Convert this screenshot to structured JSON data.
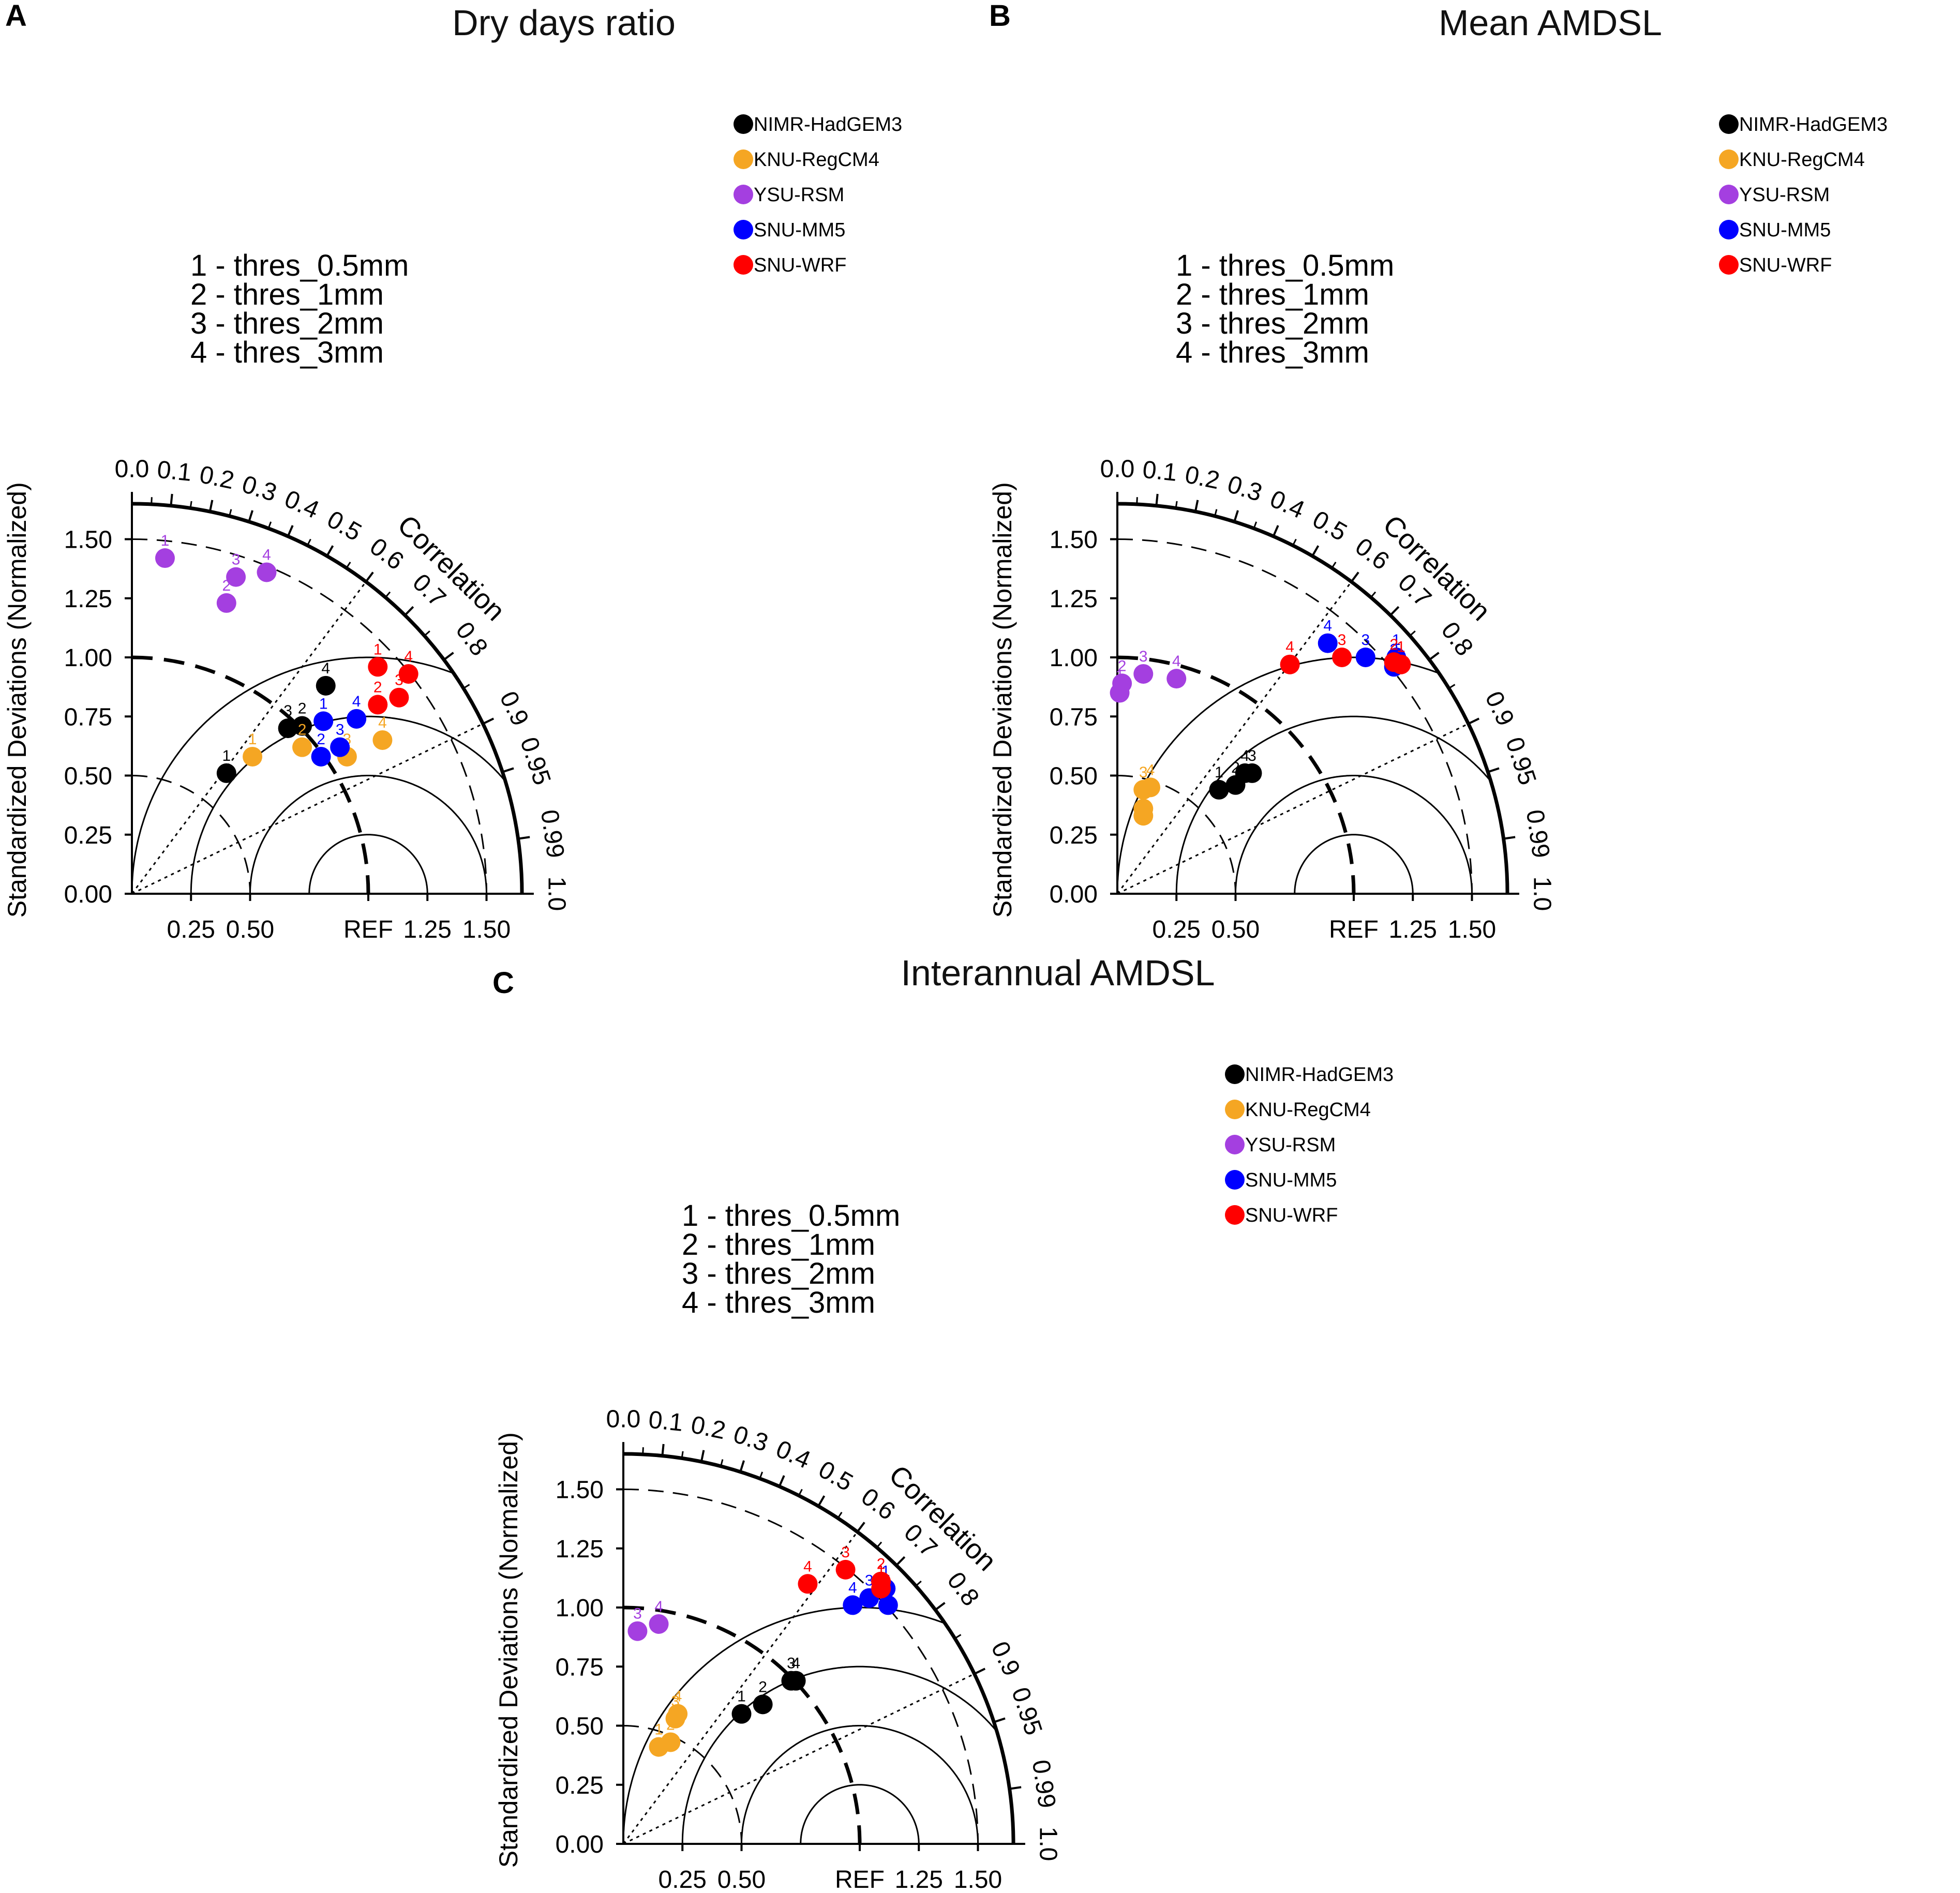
{
  "chart_data": {
    "type": "taylor",
    "ylabel": "Standardized Deviations (Normalized)",
    "correlation_label": "Correlation",
    "ref_label": "REF",
    "radial_ticks": [
      "0.00",
      "0.25",
      "0.50",
      "0.75",
      "1.00",
      "1.25",
      "1.50"
    ],
    "x_ticks": [
      "0.25",
      "0.50",
      "REF",
      "1.25",
      "1.50"
    ],
    "corr_ticks": [
      "0.0",
      "0.1",
      "0.2",
      "0.3",
      "0.4",
      "0.5",
      "0.6",
      "0.7",
      "0.8",
      "0.9",
      "0.95",
      "0.99",
      "1.0"
    ],
    "thresholds": [
      "1 - thres_0.5mm",
      "2 - thres_1mm",
      "3 - thres_2mm",
      "4 - thres_3mm"
    ],
    "legend": [
      {
        "name": "NIMR-HadGEM3",
        "color": "#000000"
      },
      {
        "name": "KNU-RegCM4",
        "color": "#f5a623"
      },
      {
        "name": "YSU-RSM",
        "color": "#a43fe0"
      },
      {
        "name": "SNU-MM5",
        "color": "#0000ff"
      },
      {
        "name": "SNU-WRF",
        "color": "#ff0000"
      }
    ],
    "panels": [
      {
        "label": "A",
        "title": "Dry days ratio",
        "series": [
          {
            "name": "NIMR-HadGEM3",
            "points": [
              {
                "id": "1",
                "x": 0.4,
                "y": 0.51
              },
              {
                "id": "2",
                "x": 0.72,
                "y": 0.71
              },
              {
                "id": "3",
                "x": 0.66,
                "y": 0.7
              },
              {
                "id": "4",
                "x": 0.82,
                "y": 0.88
              }
            ]
          },
          {
            "name": "KNU-RegCM4",
            "points": [
              {
                "id": "1",
                "x": 0.51,
                "y": 0.58
              },
              {
                "id": "2",
                "x": 0.72,
                "y": 0.62
              },
              {
                "id": "3",
                "x": 0.91,
                "y": 0.58
              },
              {
                "id": "4",
                "x": 1.06,
                "y": 0.65
              }
            ]
          },
          {
            "name": "YSU-RSM",
            "points": [
              {
                "id": "1",
                "x": 0.14,
                "y": 1.42
              },
              {
                "id": "2",
                "x": 0.4,
                "y": 1.23
              },
              {
                "id": "3",
                "x": 0.44,
                "y": 1.34
              },
              {
                "id": "4",
                "x": 0.57,
                "y": 1.36
              }
            ]
          },
          {
            "name": "SNU-MM5",
            "points": [
              {
                "id": "1",
                "x": 0.81,
                "y": 0.73
              },
              {
                "id": "2",
                "x": 0.8,
                "y": 0.58
              },
              {
                "id": "3",
                "x": 0.88,
                "y": 0.62
              },
              {
                "id": "4",
                "x": 0.95,
                "y": 0.74
              }
            ]
          },
          {
            "name": "SNU-WRF",
            "points": [
              {
                "id": "1",
                "x": 1.04,
                "y": 0.96
              },
              {
                "id": "2",
                "x": 1.04,
                "y": 0.8
              },
              {
                "id": "3",
                "x": 1.13,
                "y": 0.83
              },
              {
                "id": "4",
                "x": 1.17,
                "y": 0.93
              }
            ]
          }
        ]
      },
      {
        "label": "B",
        "title": "Mean AMDSL",
        "series": [
          {
            "name": "NIMR-HadGEM3",
            "points": [
              {
                "id": "1",
                "x": 0.43,
                "y": 0.44
              },
              {
                "id": "2",
                "x": 0.5,
                "y": 0.46
              },
              {
                "id": "3",
                "x": 0.57,
                "y": 0.51
              },
              {
                "id": "4",
                "x": 0.54,
                "y": 0.51
              }
            ]
          },
          {
            "name": "KNU-RegCM4",
            "points": [
              {
                "id": "1",
                "x": 0.11,
                "y": 0.33
              },
              {
                "id": "2",
                "x": 0.11,
                "y": 0.36
              },
              {
                "id": "3",
                "x": 0.11,
                "y": 0.44
              },
              {
                "id": "4",
                "x": 0.14,
                "y": 0.45
              }
            ]
          },
          {
            "name": "YSU-RSM",
            "points": [
              {
                "id": "1",
                "x": 0.01,
                "y": 0.85
              },
              {
                "id": "2",
                "x": 0.02,
                "y": 0.89
              },
              {
                "id": "3",
                "x": 0.11,
                "y": 0.93
              },
              {
                "id": "4",
                "x": 0.25,
                "y": 0.91
              }
            ]
          },
          {
            "name": "SNU-MM5",
            "points": [
              {
                "id": "1",
                "x": 1.18,
                "y": 1.0
              },
              {
                "id": "2",
                "x": 1.17,
                "y": 0.96
              },
              {
                "id": "3",
                "x": 1.05,
                "y": 1.0
              },
              {
                "id": "4",
                "x": 0.89,
                "y": 1.06
              }
            ]
          },
          {
            "name": "SNU-WRF",
            "points": [
              {
                "id": "1",
                "x": 1.2,
                "y": 0.97
              },
              {
                "id": "2",
                "x": 1.17,
                "y": 0.98
              },
              {
                "id": "3",
                "x": 0.95,
                "y": 1.0
              },
              {
                "id": "4",
                "x": 0.73,
                "y": 0.97
              }
            ]
          }
        ]
      },
      {
        "label": "C",
        "title": "Interannual AMDSL",
        "series": [
          {
            "name": "NIMR-HadGEM3",
            "points": [
              {
                "id": "1",
                "x": 0.5,
                "y": 0.55
              },
              {
                "id": "2",
                "x": 0.59,
                "y": 0.59
              },
              {
                "id": "3",
                "x": 0.71,
                "y": 0.69
              },
              {
                "id": "4",
                "x": 0.73,
                "y": 0.69
              }
            ]
          },
          {
            "name": "KNU-RegCM4",
            "points": [
              {
                "id": "1",
                "x": 0.15,
                "y": 0.41
              },
              {
                "id": "2",
                "x": 0.2,
                "y": 0.43
              },
              {
                "id": "3",
                "x": 0.22,
                "y": 0.53
              },
              {
                "id": "4",
                "x": 0.23,
                "y": 0.55
              }
            ]
          },
          {
            "name": "YSU-RSM",
            "points": [
              {
                "id": "3",
                "x": 0.06,
                "y": 0.9
              },
              {
                "id": "4",
                "x": 0.15,
                "y": 0.93
              }
            ]
          },
          {
            "name": "SNU-MM5",
            "points": [
              {
                "id": "1",
                "x": 1.11,
                "y": 1.08
              },
              {
                "id": "2",
                "x": 1.12,
                "y": 1.01
              },
              {
                "id": "3",
                "x": 1.04,
                "y": 1.04
              },
              {
                "id": "4",
                "x": 0.97,
                "y": 1.01
              }
            ]
          },
          {
            "name": "SNU-WRF",
            "points": [
              {
                "id": "1",
                "x": 1.09,
                "y": 1.08
              },
              {
                "id": "2",
                "x": 1.09,
                "y": 1.11
              },
              {
                "id": "3",
                "x": 0.94,
                "y": 1.16
              },
              {
                "id": "4",
                "x": 0.78,
                "y": 1.1
              }
            ]
          }
        ]
      }
    ]
  }
}
